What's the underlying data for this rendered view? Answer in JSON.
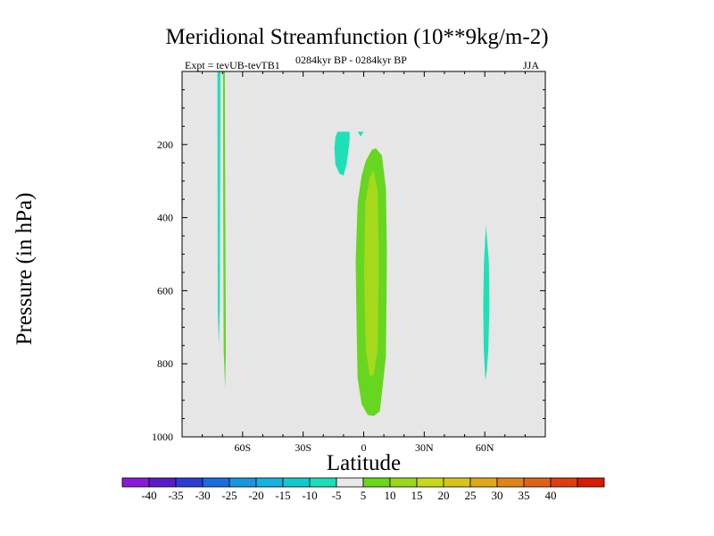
{
  "title": "Meridional Streamfunction (10**9kg/m-2)",
  "subtitle_left": "Expt = tevUB-tevTB1",
  "subtitle_center": "0284kyr BP - 0284kyr BP",
  "subtitle_right": "JJA",
  "colors": {
    "background": "#e6e6e6",
    "levels": [
      "#8a1ad8",
      "#5b1ac8",
      "#2b3ed4",
      "#1c6ce0",
      "#1896e0",
      "#14b2e0",
      "#12c8d0",
      "#18e0b8",
      "#e8e8e8",
      "#6ad818",
      "#9ad818",
      "#c6d818",
      "#d8c418",
      "#e0a818",
      "#e08418",
      "#e06218",
      "#e03c10",
      "#d81a00"
    ],
    "pos5": "#66d621",
    "pos10": "#a6d81c",
    "neg5": "#1ee0b8"
  },
  "chart_data": {
    "type": "contour",
    "xlabel": "Latitude",
    "ylabel": "Pressure (in hPa)",
    "xlim": [
      -90,
      90
    ],
    "ylim": [
      1000,
      0
    ],
    "xticks": [
      -60,
      -30,
      0,
      30,
      60
    ],
    "xtick_labels": [
      "60S",
      "30S",
      "0",
      "30N",
      "60N"
    ],
    "yticks": [
      200,
      400,
      600,
      800,
      1000
    ],
    "ytick_labels": [
      "200",
      "400",
      "600",
      "800",
      "1000"
    ],
    "colorbar": {
      "levels": [
        -40,
        -35,
        -30,
        -25,
        -20,
        -15,
        -10,
        -5,
        5,
        10,
        15,
        20,
        25,
        30,
        35,
        40
      ],
      "labels": [
        "-40",
        "-35",
        "-30",
        "-25",
        "-20",
        "-15",
        "-10",
        "-5",
        "5",
        "10",
        "15",
        "20",
        "25",
        "30",
        "35",
        "40"
      ]
    },
    "regions": [
      {
        "name": "sh-polar-negative",
        "level": -5,
        "points": [
          [
            -72.5,
            0
          ],
          [
            -71,
            0
          ],
          [
            -71.3,
            650
          ],
          [
            -71.8,
            750
          ],
          [
            -72.3,
            650
          ]
        ]
      },
      {
        "name": "sh-polar-positive",
        "level": 5,
        "points": [
          [
            -69.7,
            0
          ],
          [
            -68.8,
            0
          ],
          [
            -68.6,
            360
          ],
          [
            -68.3,
            760
          ],
          [
            -68.7,
            870
          ],
          [
            -69.4,
            760
          ],
          [
            -69.6,
            360
          ]
        ]
      },
      {
        "name": "upper-negative-cell",
        "level": -5,
        "points": [
          [
            -13,
            165
          ],
          [
            -7,
            165
          ],
          [
            -7,
            190
          ],
          [
            -8.5,
            255
          ],
          [
            -10,
            285
          ],
          [
            -12,
            280
          ],
          [
            -14,
            255
          ],
          [
            -14.5,
            210
          ],
          [
            -14,
            180
          ]
        ]
      },
      {
        "name": "upper-negative-fragment",
        "level": -5,
        "points": [
          [
            -3,
            165
          ],
          [
            0,
            165
          ],
          [
            -1.5,
            178
          ]
        ]
      },
      {
        "name": "tropical-positive-outer",
        "level": 5,
        "points": [
          [
            6,
            210
          ],
          [
            9,
            230
          ],
          [
            11,
            320
          ],
          [
            11.5,
            500
          ],
          [
            11,
            780
          ],
          [
            9,
            880
          ],
          [
            8,
            930
          ],
          [
            5,
            943
          ],
          [
            2,
            940
          ],
          [
            -1,
            910
          ],
          [
            -3,
            840
          ],
          [
            -3.5,
            700
          ],
          [
            -4,
            520
          ],
          [
            -3,
            360
          ],
          [
            -1,
            285
          ],
          [
            1,
            245
          ],
          [
            4,
            215
          ]
        ]
      },
      {
        "name": "tropical-positive-core",
        "level": 10,
        "points": [
          [
            5,
            270
          ],
          [
            7,
            330
          ],
          [
            7.5,
            520
          ],
          [
            7,
            760
          ],
          [
            5,
            830
          ],
          [
            3,
            835
          ],
          [
            1,
            760
          ],
          [
            0.2,
            550
          ],
          [
            0.8,
            360
          ],
          [
            3,
            290
          ]
        ]
      },
      {
        "name": "nh-negative-cell",
        "level": -5,
        "points": [
          [
            60.6,
            420
          ],
          [
            62,
            520
          ],
          [
            62.3,
            640
          ],
          [
            61.8,
            760
          ],
          [
            61,
            820
          ],
          [
            60.3,
            845
          ],
          [
            59.5,
            760
          ],
          [
            59.2,
            640
          ],
          [
            59.6,
            520
          ]
        ]
      }
    ]
  }
}
